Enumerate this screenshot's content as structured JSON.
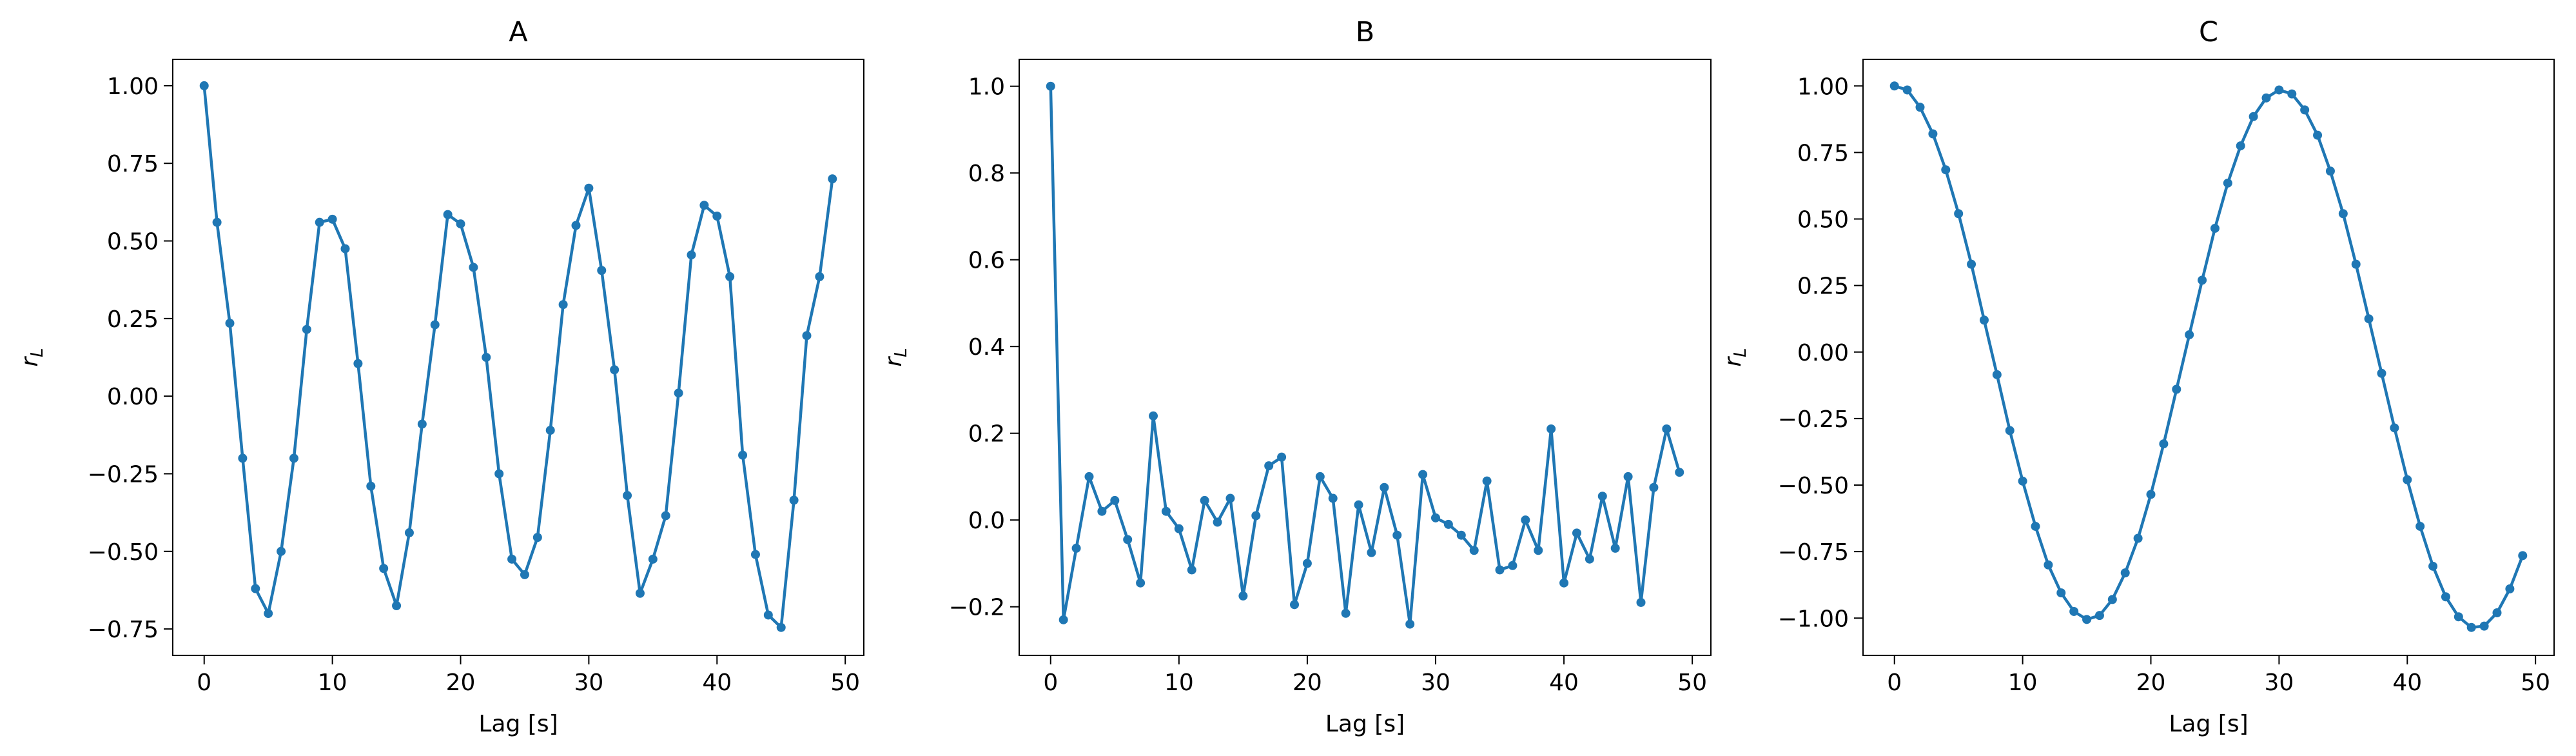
{
  "colors": {
    "series": "#1f77b4",
    "axes": "#000000",
    "background": "#ffffff"
  },
  "chart_data": [
    {
      "type": "line",
      "title": "A",
      "xlabel": "Lag [s]",
      "ylabel": "r_L",
      "xlim": [
        -2.45,
        51.45
      ],
      "ylim": [
        -0.835,
        1.085
      ],
      "xticks": [
        0,
        10,
        20,
        30,
        40,
        50
      ],
      "yticks": [
        -0.75,
        -0.5,
        -0.25,
        0.0,
        0.25,
        0.5,
        0.75,
        1.0
      ],
      "ytick_labels": [
        "−0.75",
        "−0.50",
        "−0.25",
        "0.00",
        "0.25",
        "0.50",
        "0.75",
        "1.00"
      ],
      "x": [
        0,
        1,
        2,
        3,
        4,
        5,
        6,
        7,
        8,
        9,
        10,
        11,
        12,
        13,
        14,
        15,
        16,
        17,
        18,
        19,
        20,
        21,
        22,
        23,
        24,
        25,
        26,
        27,
        28,
        29,
        30,
        31,
        32,
        33,
        34,
        35,
        36,
        37,
        38,
        39,
        40,
        41,
        42,
        43,
        44,
        45,
        46,
        47,
        48,
        49
      ],
      "y": [
        1.0,
        0.56,
        0.235,
        -0.2,
        -0.62,
        -0.7,
        -0.5,
        -0.2,
        0.215,
        0.56,
        0.57,
        0.475,
        0.105,
        -0.29,
        -0.555,
        -0.675,
        -0.44,
        -0.09,
        0.23,
        0.585,
        0.555,
        0.415,
        0.125,
        -0.25,
        -0.525,
        -0.575,
        -0.455,
        -0.11,
        0.295,
        0.55,
        0.67,
        0.405,
        0.085,
        -0.32,
        -0.635,
        -0.525,
        -0.385,
        0.01,
        0.455,
        0.615,
        0.58,
        0.385,
        -0.19,
        -0.51,
        -0.705,
        -0.745,
        -0.335,
        0.195,
        0.385,
        0.7
      ],
      "grid": false,
      "marker": "dot"
    },
    {
      "type": "line",
      "title": "B",
      "xlabel": "Lag [s]",
      "ylabel": "r_L",
      "xlim": [
        -2.45,
        51.45
      ],
      "ylim": [
        -0.312,
        1.062
      ],
      "xticks": [
        0,
        10,
        20,
        30,
        40,
        50
      ],
      "yticks": [
        -0.2,
        0.0,
        0.2,
        0.4,
        0.6,
        0.8,
        1.0
      ],
      "ytick_labels": [
        "−0.2",
        "0.0",
        "0.2",
        "0.4",
        "0.6",
        "0.8",
        "1.0"
      ],
      "x": [
        0,
        1,
        2,
        3,
        4,
        5,
        6,
        7,
        8,
        9,
        10,
        11,
        12,
        13,
        14,
        15,
        16,
        17,
        18,
        19,
        20,
        21,
        22,
        23,
        24,
        25,
        26,
        27,
        28,
        29,
        30,
        31,
        32,
        33,
        34,
        35,
        36,
        37,
        38,
        39,
        40,
        41,
        42,
        43,
        44,
        45,
        46,
        47,
        48,
        49
      ],
      "y": [
        1.0,
        -0.23,
        -0.065,
        0.1,
        0.02,
        0.045,
        -0.045,
        -0.145,
        0.24,
        0.02,
        -0.02,
        -0.115,
        0.045,
        -0.005,
        0.05,
        -0.175,
        0.01,
        0.125,
        0.145,
        -0.195,
        -0.1,
        0.1,
        0.05,
        -0.215,
        0.035,
        -0.075,
        0.075,
        -0.035,
        -0.24,
        0.105,
        0.005,
        -0.01,
        -0.035,
        -0.07,
        0.09,
        -0.115,
        -0.105,
        0.0,
        -0.07,
        0.21,
        -0.145,
        -0.03,
        -0.09,
        0.055,
        -0.065,
        0.1,
        -0.19,
        0.075,
        0.21,
        0.11
      ],
      "grid": false,
      "marker": "dot"
    },
    {
      "type": "line",
      "title": "C",
      "xlabel": "Lag [s]",
      "ylabel": "r_L",
      "xlim": [
        -2.45,
        51.45
      ],
      "ylim": [
        -1.14,
        1.1
      ],
      "xticks": [
        0,
        10,
        20,
        30,
        40,
        50
      ],
      "yticks": [
        -1.0,
        -0.75,
        -0.5,
        -0.25,
        0.0,
        0.25,
        0.5,
        0.75,
        1.0
      ],
      "ytick_labels": [
        "−1.00",
        "−0.75",
        "−0.50",
        "−0.25",
        "0.00",
        "0.25",
        "0.50",
        "0.75",
        "1.00"
      ],
      "x": [
        0,
        1,
        2,
        3,
        4,
        5,
        6,
        7,
        8,
        9,
        10,
        11,
        12,
        13,
        14,
        15,
        16,
        17,
        18,
        19,
        20,
        21,
        22,
        23,
        24,
        25,
        26,
        27,
        28,
        29,
        30,
        31,
        32,
        33,
        34,
        35,
        36,
        37,
        38,
        39,
        40,
        41,
        42,
        43,
        44,
        45,
        46,
        47,
        48,
        49
      ],
      "y": [
        1.0,
        0.985,
        0.92,
        0.82,
        0.685,
        0.52,
        0.33,
        0.12,
        -0.085,
        -0.295,
        -0.485,
        -0.655,
        -0.8,
        -0.905,
        -0.975,
        -1.005,
        -0.99,
        -0.93,
        -0.83,
        -0.7,
        -0.535,
        -0.345,
        -0.14,
        0.065,
        0.27,
        0.465,
        0.635,
        0.775,
        0.885,
        0.955,
        0.985,
        0.97,
        0.91,
        0.815,
        0.68,
        0.52,
        0.33,
        0.125,
        -0.08,
        -0.285,
        -0.48,
        -0.655,
        -0.805,
        -0.92,
        -0.995,
        -1.035,
        -1.03,
        -0.98,
        -0.89,
        -0.765
      ],
      "grid": false,
      "marker": "dot"
    }
  ]
}
